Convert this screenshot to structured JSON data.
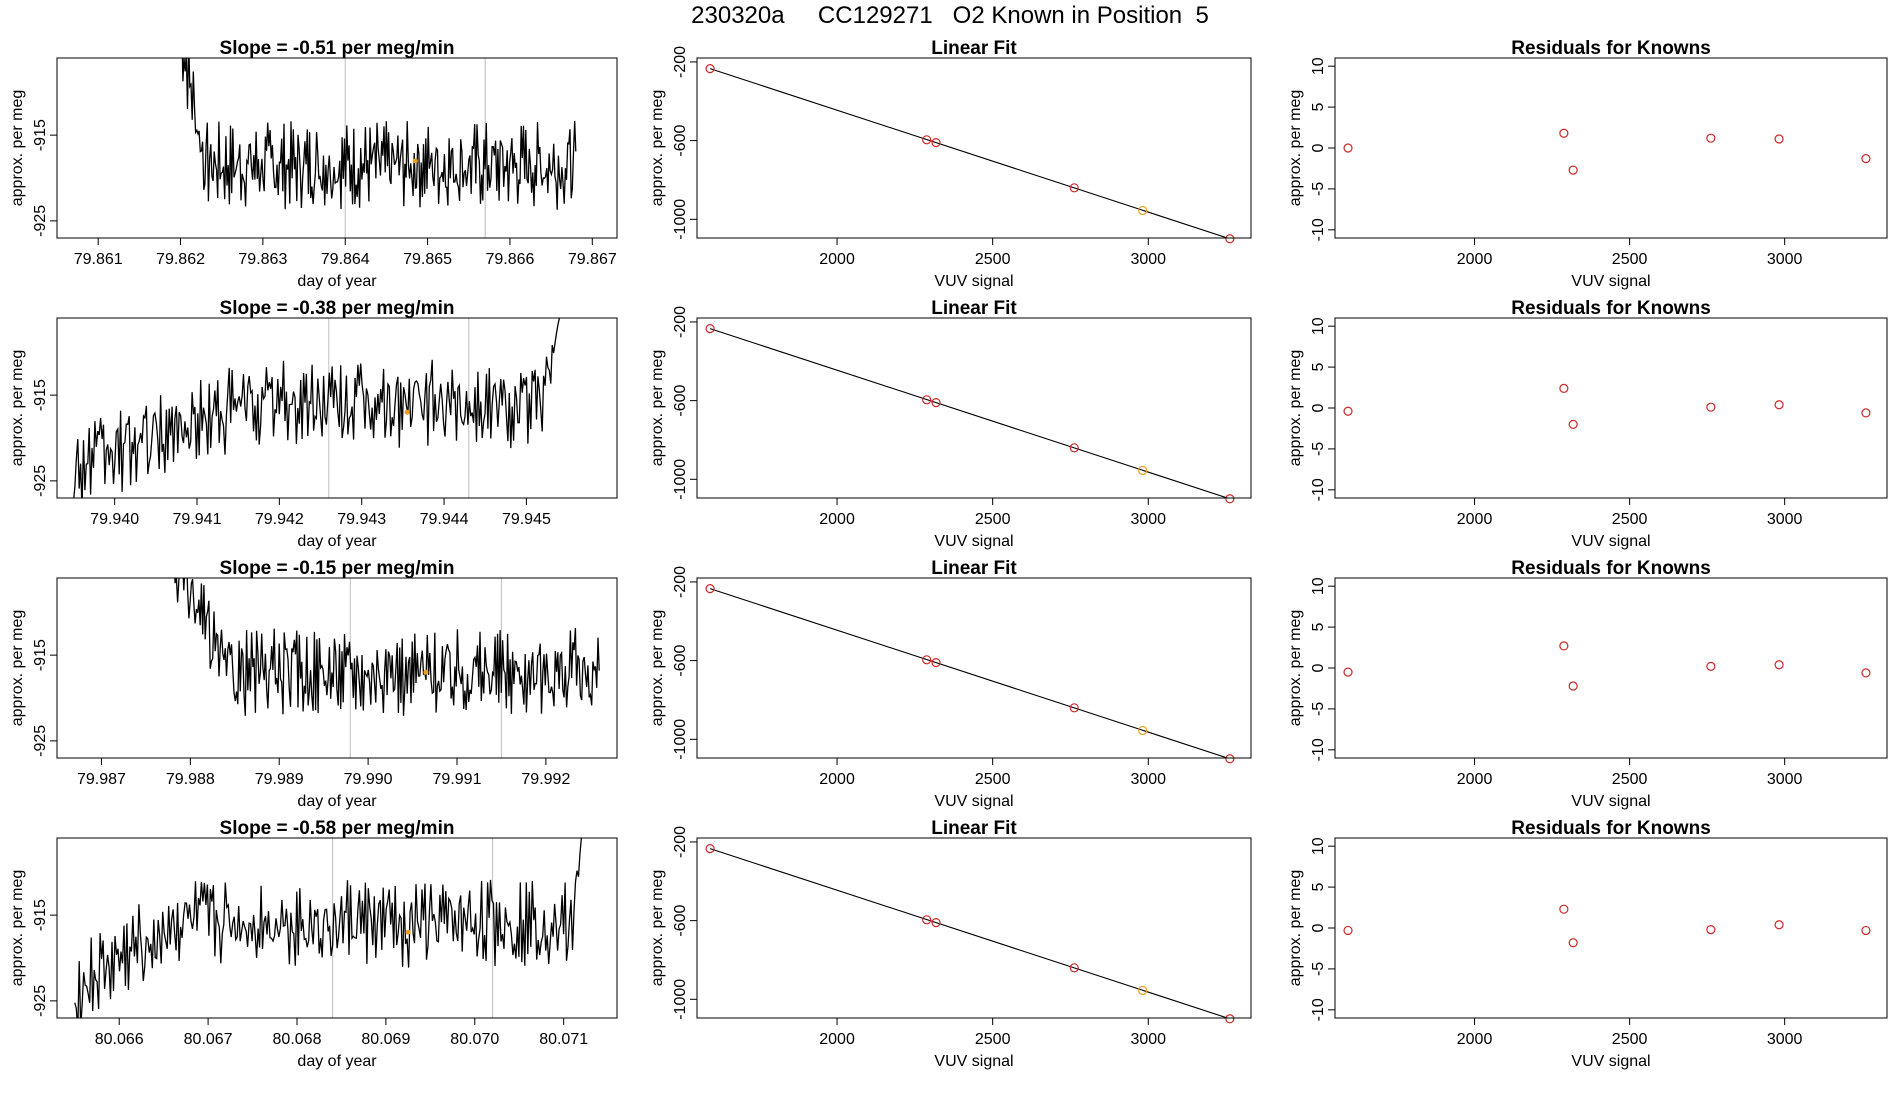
{
  "title": "230320a     CC129271   O2 Known in Position  5",
  "colors": {
    "trace": "#000000",
    "frame": "#000000",
    "marker": "#cd2626",
    "highlight": "#e8a020",
    "vline": "#c8c8c8",
    "fitline": "#000000"
  },
  "labels": {
    "ylabel": "approx. per meg",
    "time_xlabel": "day of year",
    "signal_xlabel": "VUV signal",
    "fit_title": "Linear Fit",
    "resid_title": "Residuals for Knowns"
  },
  "chart_data": [
    {
      "type": "line",
      "title": "Slope =  -0.51  per meg/min",
      "xlabel": "day of year",
      "ylabel": "approx. per meg",
      "xlim": [
        79.8605,
        79.8673
      ],
      "ylim": [
        -927,
        -906
      ],
      "xticks": [
        79.861,
        79.862,
        79.863,
        79.864,
        79.865,
        79.866,
        79.867
      ],
      "xtick_labels": [
        "79.861",
        "79.862",
        "79.863",
        "79.864",
        "79.865",
        "79.866",
        "79.867"
      ],
      "yticks": [
        -925,
        -915
      ],
      "ytick_labels": [
        "-925",
        "-915"
      ],
      "series_start": 79.862,
      "series_end": 79.8668,
      "start_level": -903,
      "settle": 79.8623,
      "end_level": -918.5,
      "noise": 4,
      "vlines": [
        79.864,
        79.8657
      ],
      "marker": {
        "x": 79.86485,
        "y": -918
      }
    },
    {
      "type": "scatter",
      "title": "Linear Fit",
      "xlabel": "VUV signal",
      "ylabel": "approx. per meg",
      "xlim": [
        1550,
        3330
      ],
      "ylim": [
        -1095,
        -180
      ],
      "xticks": [
        2000,
        2500,
        3000
      ],
      "xtick_labels": [
        "2000",
        "2500",
        "3000"
      ],
      "yticks": [
        -1000,
        -600,
        -200
      ],
      "ytick_labels": [
        "-1000",
        "-600",
        "-200"
      ],
      "x": [
        1592,
        2288,
        2318,
        2762,
        2982,
        3262
      ],
      "y": [
        -234,
        -596,
        -610,
        -840,
        -955,
        -1099
      ],
      "highlight": [
        false,
        false,
        false,
        false,
        true,
        false
      ],
      "fit": {
        "x": [
          1592,
          3310
        ],
        "y": [
          -234,
          -1124
        ]
      }
    },
    {
      "type": "scatter",
      "title": "Residuals for Knowns",
      "xlabel": "VUV signal",
      "ylabel": "approx. per meg",
      "xlim": [
        1550,
        3330
      ],
      "ylim": [
        -11,
        11
      ],
      "xticks": [
        2000,
        2500,
        3000
      ],
      "xtick_labels": [
        "2000",
        "2500",
        "3000"
      ],
      "yticks": [
        -10,
        -5,
        0,
        5,
        10
      ],
      "ytick_labels": [
        "-10",
        "-5",
        "0",
        "5",
        "10"
      ],
      "x": [
        1592,
        2288,
        2318,
        2762,
        2982,
        3262
      ],
      "y": [
        0.0,
        1.8,
        -2.7,
        1.2,
        1.1,
        -1.3
      ],
      "highlight": [
        false,
        false,
        false,
        false,
        false,
        false
      ]
    },
    {
      "type": "line",
      "title": "Slope =  -0.38  per meg/min",
      "xlabel": "day of year",
      "ylabel": "approx. per meg",
      "xlim": [
        79.9393,
        79.9461
      ],
      "ylim": [
        -927,
        -906
      ],
      "xticks": [
        79.94,
        79.941,
        79.942,
        79.943,
        79.944,
        79.945
      ],
      "xtick_labels": [
        "79.940",
        "79.941",
        "79.942",
        "79.943",
        "79.944",
        "79.945"
      ],
      "yticks": [
        -925,
        -915
      ],
      "ytick_labels": [
        "-925",
        "-915"
      ],
      "series_start": 79.9395,
      "series_end": 79.9454,
      "start_level": -923.5,
      "settle": 79.9416,
      "end_level": -916,
      "noise": 4,
      "tail": {
        "from": 79.9452,
        "to_y": -906
      },
      "vlines": [
        79.9426,
        79.9443
      ],
      "marker": {
        "x": 79.94355,
        "y": -917
      }
    },
    {
      "type": "scatter",
      "title": "Linear Fit",
      "xlabel": "VUV signal",
      "ylabel": "approx. per meg",
      "xlim": [
        1550,
        3330
      ],
      "ylim": [
        -1095,
        -180
      ],
      "xticks": [
        2000,
        2500,
        3000
      ],
      "xtick_labels": [
        "2000",
        "2500",
        "3000"
      ],
      "yticks": [
        -1000,
        -600,
        -200
      ],
      "ytick_labels": [
        "-1000",
        "-600",
        "-200"
      ],
      "x": [
        1592,
        2288,
        2318,
        2762,
        2982,
        3262
      ],
      "y": [
        -234,
        -596,
        -610,
        -840,
        -955,
        -1099
      ],
      "highlight": [
        false,
        false,
        false,
        false,
        true,
        false
      ],
      "fit": {
        "x": [
          1592,
          3310
        ],
        "y": [
          -234,
          -1124
        ]
      }
    },
    {
      "type": "scatter",
      "title": "Residuals for Knowns",
      "xlabel": "VUV signal",
      "ylabel": "approx. per meg",
      "xlim": [
        1550,
        3330
      ],
      "ylim": [
        -11,
        11
      ],
      "xticks": [
        2000,
        2500,
        3000
      ],
      "xtick_labels": [
        "2000",
        "2500",
        "3000"
      ],
      "yticks": [
        -10,
        -5,
        0,
        5,
        10
      ],
      "ytick_labels": [
        "-10",
        "-5",
        "0",
        "5",
        "10"
      ],
      "x": [
        1592,
        2288,
        2318,
        2762,
        2982,
        3262
      ],
      "y": [
        -0.4,
        2.4,
        -2.0,
        0.1,
        0.4,
        -0.6
      ],
      "highlight": [
        false,
        false,
        false,
        false,
        false,
        false
      ]
    },
    {
      "type": "line",
      "title": "Slope =  -0.15  per meg/min",
      "xlabel": "day of year",
      "ylabel": "approx. per meg",
      "xlim": [
        79.9865,
        79.9928
      ],
      "ylim": [
        -927,
        -906
      ],
      "xticks": [
        79.987,
        79.988,
        79.989,
        79.99,
        79.991,
        79.992
      ],
      "xtick_labels": [
        "79.987",
        "79.988",
        "79.989",
        "79.990",
        "79.991",
        "79.992"
      ],
      "yticks": [
        -925,
        -915
      ],
      "ytick_labels": [
        "-925",
        "-915"
      ],
      "series_start": 79.9878,
      "series_end": 79.9926,
      "start_level": -904,
      "settle": 79.9884,
      "end_level": -917,
      "noise": 4,
      "vlines": [
        79.9898,
        79.9915
      ],
      "marker": {
        "x": 79.99065,
        "y": -917
      }
    },
    {
      "type": "scatter",
      "title": "Linear Fit",
      "xlabel": "VUV signal",
      "ylabel": "approx. per meg",
      "xlim": [
        1550,
        3330
      ],
      "ylim": [
        -1095,
        -180
      ],
      "xticks": [
        2000,
        2500,
        3000
      ],
      "xtick_labels": [
        "2000",
        "2500",
        "3000"
      ],
      "yticks": [
        -1000,
        -600,
        -200
      ],
      "ytick_labels": [
        "-1000",
        "-600",
        "-200"
      ],
      "x": [
        1592,
        2288,
        2318,
        2762,
        2982,
        3262
      ],
      "y": [
        -234,
        -596,
        -610,
        -840,
        -955,
        -1099
      ],
      "highlight": [
        false,
        false,
        false,
        false,
        true,
        false
      ],
      "fit": {
        "x": [
          1592,
          3310
        ],
        "y": [
          -234,
          -1124
        ]
      }
    },
    {
      "type": "scatter",
      "title": "Residuals for Knowns",
      "xlabel": "VUV signal",
      "ylabel": "approx. per meg",
      "xlim": [
        1550,
        3330
      ],
      "ylim": [
        -11,
        11
      ],
      "xticks": [
        2000,
        2500,
        3000
      ],
      "xtick_labels": [
        "2000",
        "2500",
        "3000"
      ],
      "yticks": [
        -10,
        -5,
        0,
        5,
        10
      ],
      "ytick_labels": [
        "-10",
        "-5",
        "0",
        "5",
        "10"
      ],
      "x": [
        1592,
        2288,
        2318,
        2762,
        2982,
        3262
      ],
      "y": [
        -0.5,
        2.7,
        -2.2,
        0.2,
        0.4,
        -0.6
      ],
      "highlight": [
        false,
        false,
        false,
        false,
        false,
        false
      ]
    },
    {
      "type": "line",
      "title": "Slope =  -0.58  per meg/min",
      "xlabel": "day of year",
      "ylabel": "approx. per meg",
      "xlim": [
        80.0653,
        80.0716
      ],
      "ylim": [
        -927,
        -906
      ],
      "xticks": [
        80.066,
        80.067,
        80.068,
        80.069,
        80.07,
        80.071
      ],
      "xtick_labels": [
        "80.066",
        "80.067",
        "80.068",
        "80.069",
        "80.070",
        "80.071"
      ],
      "yticks": [
        -925,
        -915
      ],
      "ytick_labels": [
        "-925",
        "-915"
      ],
      "series_start": 80.0655,
      "series_end": 80.0712,
      "start_level": -924,
      "settle": 80.0666,
      "end_level": -916,
      "noise": 4,
      "tail": {
        "from": 80.0711,
        "to_y": -906
      },
      "vlines": [
        80.0684,
        80.0702
      ],
      "marker": {
        "x": 80.06925,
        "y": -917
      }
    },
    {
      "type": "scatter",
      "title": "Linear Fit",
      "xlabel": "VUV signal",
      "ylabel": "approx. per meg",
      "xlim": [
        1550,
        3330
      ],
      "ylim": [
        -1095,
        -180
      ],
      "xticks": [
        2000,
        2500,
        3000
      ],
      "xtick_labels": [
        "2000",
        "2500",
        "3000"
      ],
      "yticks": [
        -1000,
        -600,
        -200
      ],
      "ytick_labels": [
        "-1000",
        "-600",
        "-200"
      ],
      "x": [
        1592,
        2288,
        2318,
        2762,
        2982,
        3262
      ],
      "y": [
        -234,
        -596,
        -610,
        -840,
        -955,
        -1099
      ],
      "highlight": [
        false,
        false,
        false,
        false,
        true,
        false
      ],
      "fit": {
        "x": [
          1592,
          3310
        ],
        "y": [
          -234,
          -1124
        ]
      }
    },
    {
      "type": "scatter",
      "title": "Residuals for Knowns",
      "xlabel": "VUV signal",
      "ylabel": "approx. per meg",
      "xlim": [
        1550,
        3330
      ],
      "ylim": [
        -11,
        11
      ],
      "xticks": [
        2000,
        2500,
        3000
      ],
      "xtick_labels": [
        "2000",
        "2500",
        "3000"
      ],
      "yticks": [
        -10,
        -5,
        0,
        5,
        10
      ],
      "ytick_labels": [
        "-10",
        "-5",
        "0",
        "5",
        "10"
      ],
      "x": [
        1592,
        2288,
        2318,
        2762,
        2982,
        3262
      ],
      "y": [
        -0.3,
        2.3,
        -1.8,
        -0.2,
        0.4,
        -0.3
      ],
      "highlight": [
        false,
        false,
        false,
        false,
        false,
        false
      ]
    }
  ]
}
